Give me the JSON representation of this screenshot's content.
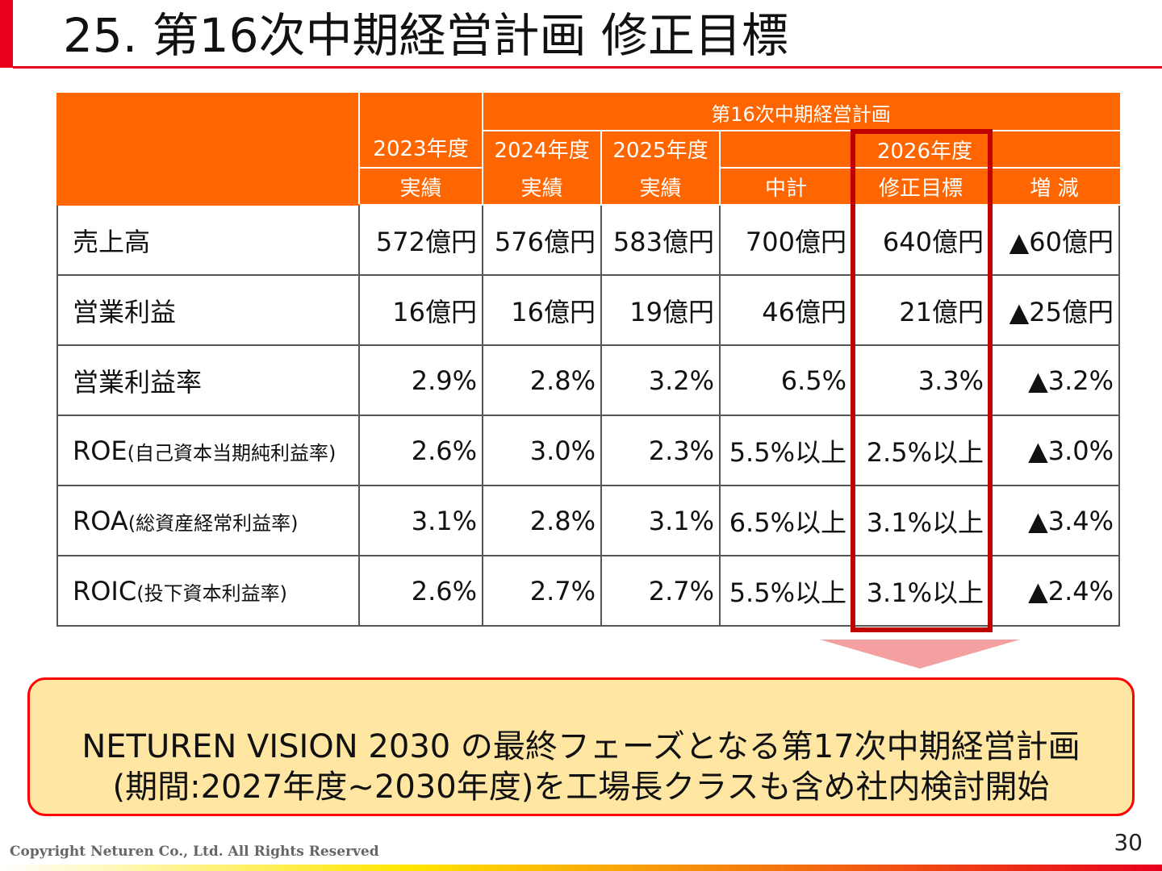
{
  "slide": {
    "title": "25. 第16次中期経営計画 修正目標",
    "page_number": "30",
    "copyright": "Copyright Neturen Co., Ltd. All Rights Reserved"
  },
  "table": {
    "header": {
      "plan_group": "第16次中期経営計画",
      "fy2023": "2023年度",
      "fy2024": "2024年度",
      "fy2025": "2025年度",
      "fy2026": "2026年度",
      "actual": "実績",
      "mid_plan": "中計",
      "revised_target": "修正目標",
      "change": "増 減"
    },
    "rows": [
      {
        "label": "売上高",
        "label_sub": "",
        "fy2023": "572億円",
        "fy2024": "576億円",
        "fy2025": "583億円",
        "mid_plan": "700億円",
        "revised": "640億円",
        "change": "▲60億円"
      },
      {
        "label": "営業利益",
        "label_sub": "",
        "fy2023": "16億円",
        "fy2024": "16億円",
        "fy2025": "19億円",
        "mid_plan": "46億円",
        "revised": "21億円",
        "change": "▲25億円"
      },
      {
        "label": "営業利益率",
        "label_sub": "",
        "fy2023": "2.9%",
        "fy2024": "2.8%",
        "fy2025": "3.2%",
        "mid_plan": "6.5%",
        "revised": "3.3%",
        "change": "▲3.2%"
      },
      {
        "label": "ROE",
        "label_sub": "(自己資本当期純利益率)",
        "fy2023": "2.6%",
        "fy2024": "3.0%",
        "fy2025": "2.3%",
        "mid_plan": "5.5%以上",
        "revised": "2.5%以上",
        "change": "▲3.0%"
      },
      {
        "label": "ROA",
        "label_sub": "(総資産経常利益率)",
        "fy2023": "3.1%",
        "fy2024": "2.8%",
        "fy2025": "3.1%",
        "mid_plan": "6.5%以上",
        "revised": "3.1%以上",
        "change": "▲3.4%"
      },
      {
        "label": "ROIC",
        "label_sub": "(投下資本利益率)",
        "fy2023": "2.6%",
        "fy2024": "2.7%",
        "fy2025": "2.7%",
        "mid_plan": "5.5%以上",
        "revised": "3.1%以上",
        "change": "▲2.4%"
      }
    ]
  },
  "callout": {
    "line1": "NETUREN VISION 2030 の最終フェーズとなる第17次中期経営計画",
    "line2": "(期間:2027年度~2030年度)を工場長クラスも含め社内検討開始"
  },
  "colors": {
    "accent_red": "#e8001c",
    "header_orange": "#ff6600",
    "highlight_red": "#c00000",
    "callout_fill": "#ffe6a3"
  }
}
